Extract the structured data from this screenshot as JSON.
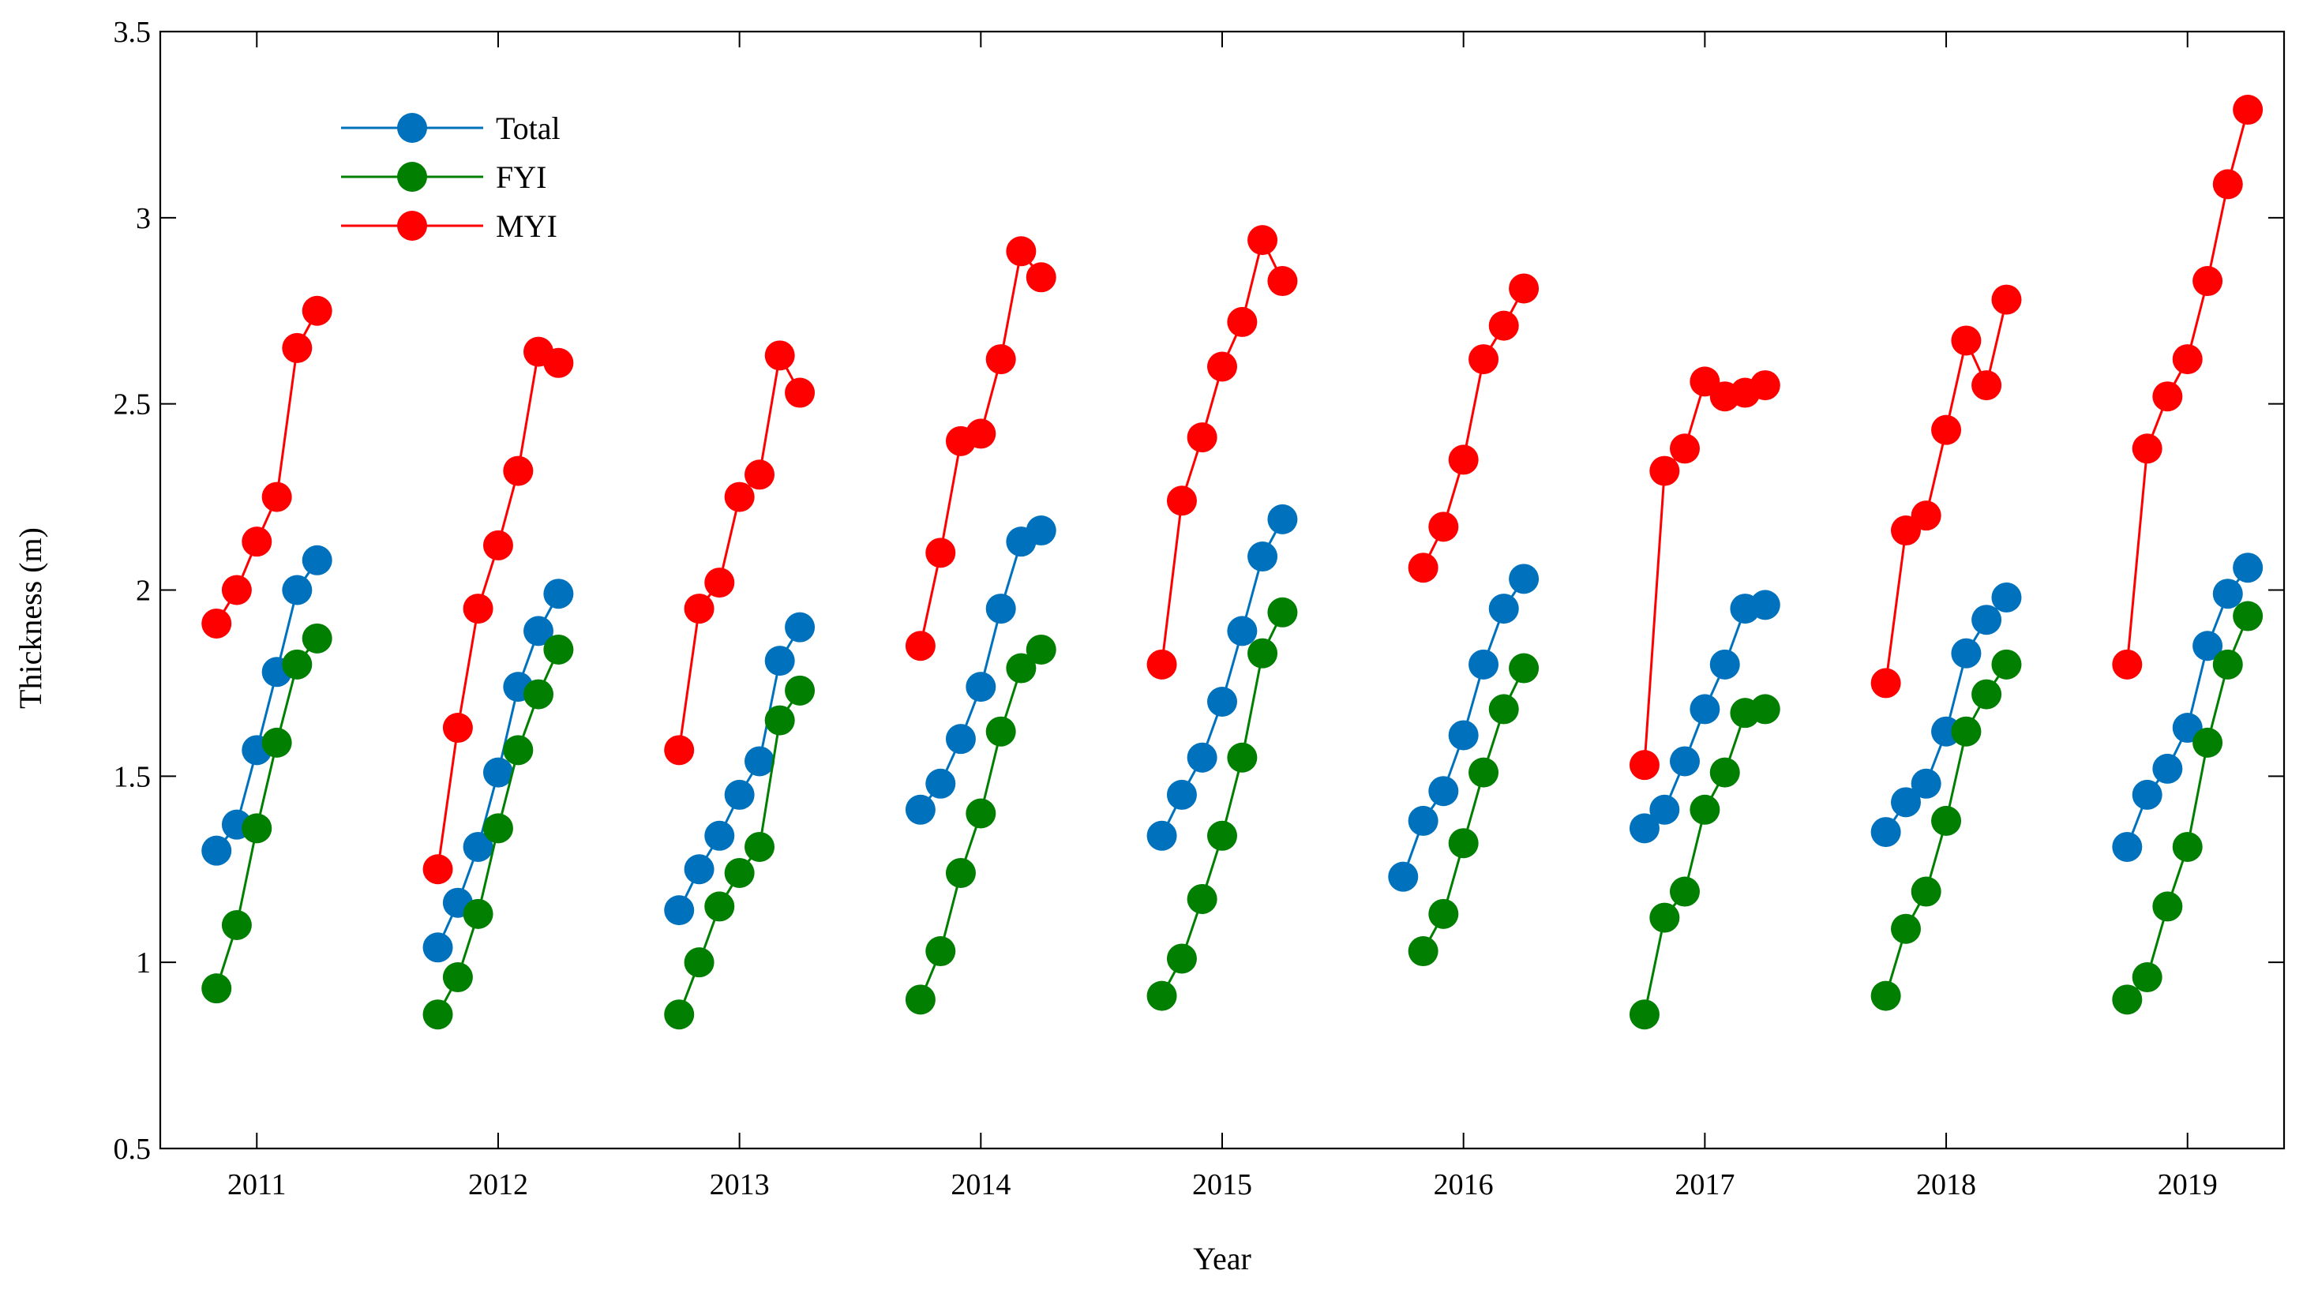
{
  "chart_data": {
    "type": "line",
    "title": "",
    "xlabel": "Year",
    "ylabel": "Thickness (m)",
    "xlim": [
      2010.6,
      2019.4
    ],
    "ylim": [
      0.5,
      3.5
    ],
    "xticks": [
      2011,
      2012,
      2013,
      2014,
      2015,
      2016,
      2017,
      2018,
      2019
    ],
    "xtick_labels": [
      "2011",
      "2012",
      "2013",
      "2014",
      "2015",
      "2016",
      "2017",
      "2018",
      "2019"
    ],
    "yticks": [
      0.5,
      1,
      1.5,
      2,
      2.5,
      3,
      3.5
    ],
    "ytick_labels": [
      "0.5",
      "1",
      "1.5",
      "2",
      "2.5",
      "3",
      "3.5"
    ],
    "grid": false,
    "legend_position": "top-left",
    "series": [
      {
        "name": "Total",
        "color": "#0072BD",
        "segments": [
          {
            "x": [
              2010.833,
              2010.917,
              2011.0,
              2011.083,
              2011.167,
              2011.25
            ],
            "y": [
              1.3,
              1.37,
              1.57,
              1.78,
              2.0,
              2.08
            ]
          },
          {
            "x": [
              2011.75,
              2011.833,
              2011.917,
              2012.0,
              2012.083,
              2012.167,
              2012.25
            ],
            "y": [
              1.04,
              1.16,
              1.31,
              1.51,
              1.74,
              1.89,
              1.99
            ]
          },
          {
            "x": [
              2012.75,
              2012.833,
              2012.917,
              2013.0,
              2013.083,
              2013.167,
              2013.25
            ],
            "y": [
              1.14,
              1.25,
              1.34,
              1.45,
              1.54,
              1.81,
              1.9
            ]
          },
          {
            "x": [
              2013.75,
              2013.833,
              2013.917,
              2014.0,
              2014.083,
              2014.167,
              2014.25
            ],
            "y": [
              1.41,
              1.48,
              1.6,
              1.74,
              1.95,
              2.13,
              2.16
            ]
          },
          {
            "x": [
              2014.75,
              2014.833,
              2014.917,
              2015.0,
              2015.083,
              2015.167,
              2015.25
            ],
            "y": [
              1.34,
              1.45,
              1.55,
              1.7,
              1.89,
              2.09,
              2.19
            ]
          },
          {
            "x": [
              2015.75,
              2015.833,
              2015.917,
              2016.0,
              2016.083,
              2016.167,
              2016.25
            ],
            "y": [
              1.23,
              1.38,
              1.46,
              1.61,
              1.8,
              1.95,
              2.03
            ]
          },
          {
            "x": [
              2016.75,
              2016.833,
              2016.917,
              2017.0,
              2017.083,
              2017.167,
              2017.25
            ],
            "y": [
              1.36,
              1.41,
              1.54,
              1.68,
              1.8,
              1.95,
              1.96
            ]
          },
          {
            "x": [
              2017.75,
              2017.833,
              2017.917,
              2018.0,
              2018.083,
              2018.167,
              2018.25
            ],
            "y": [
              1.35,
              1.43,
              1.48,
              1.62,
              1.83,
              1.92,
              1.98
            ]
          },
          {
            "x": [
              2018.75,
              2018.833,
              2018.917,
              2019.0,
              2019.083,
              2019.167,
              2019.25
            ],
            "y": [
              1.31,
              1.45,
              1.52,
              1.63,
              1.85,
              1.99,
              2.06
            ]
          }
        ]
      },
      {
        "name": "FYI",
        "color": "#007F00",
        "segments": [
          {
            "x": [
              2010.833,
              2010.917,
              2011.0,
              2011.083,
              2011.167,
              2011.25
            ],
            "y": [
              0.93,
              1.1,
              1.36,
              1.59,
              1.8,
              1.87
            ]
          },
          {
            "x": [
              2011.75,
              2011.833,
              2011.917,
              2012.0,
              2012.083,
              2012.167,
              2012.25
            ],
            "y": [
              0.86,
              0.96,
              1.13,
              1.36,
              1.57,
              1.72,
              1.84
            ]
          },
          {
            "x": [
              2012.75,
              2012.833,
              2012.917,
              2013.0,
              2013.083,
              2013.167,
              2013.25
            ],
            "y": [
              0.86,
              1.0,
              1.15,
              1.24,
              1.31,
              1.65,
              1.73
            ]
          },
          {
            "x": [
              2013.75,
              2013.833,
              2013.917,
              2014.0,
              2014.083,
              2014.167,
              2014.25
            ],
            "y": [
              0.9,
              1.03,
              1.24,
              1.4,
              1.62,
              1.79,
              1.84
            ]
          },
          {
            "x": [
              2014.75,
              2014.833,
              2014.917,
              2015.0,
              2015.083,
              2015.167,
              2015.25
            ],
            "y": [
              0.91,
              1.01,
              1.17,
              1.34,
              1.55,
              1.83,
              1.94
            ]
          },
          {
            "x": [
              2015.833,
              2015.917,
              2016.0,
              2016.083,
              2016.167,
              2016.25
            ],
            "y": [
              1.03,
              1.13,
              1.32,
              1.51,
              1.68,
              1.79
            ]
          },
          {
            "x": [
              2016.75,
              2016.833,
              2016.917,
              2017.0,
              2017.083,
              2017.167,
              2017.25
            ],
            "y": [
              0.86,
              1.12,
              1.19,
              1.41,
              1.51,
              1.67,
              1.68
            ]
          },
          {
            "x": [
              2017.75,
              2017.833,
              2017.917,
              2018.0,
              2018.083,
              2018.167,
              2018.25
            ],
            "y": [
              0.91,
              1.09,
              1.19,
              1.38,
              1.62,
              1.72,
              1.8
            ]
          },
          {
            "x": [
              2018.75,
              2018.833,
              2018.917,
              2019.0,
              2019.083,
              2019.167,
              2019.25
            ],
            "y": [
              0.9,
              0.96,
              1.15,
              1.31,
              1.59,
              1.8,
              1.93
            ]
          }
        ]
      },
      {
        "name": "MYI",
        "color": "#FF0000",
        "segments": [
          {
            "x": [
              2010.833,
              2010.917,
              2011.0,
              2011.083,
              2011.167,
              2011.25
            ],
            "y": [
              1.91,
              2.0,
              2.13,
              2.25,
              2.65,
              2.75
            ]
          },
          {
            "x": [
              2011.75,
              2011.833,
              2011.917,
              2012.0,
              2012.083,
              2012.167,
              2012.25
            ],
            "y": [
              1.25,
              1.63,
              1.95,
              2.12,
              2.32,
              2.64,
              2.61
            ]
          },
          {
            "x": [
              2012.75,
              2012.833,
              2012.917,
              2013.0,
              2013.083,
              2013.167,
              2013.25
            ],
            "y": [
              1.57,
              1.95,
              2.02,
              2.25,
              2.31,
              2.63,
              2.53
            ]
          },
          {
            "x": [
              2013.75,
              2013.833,
              2013.917,
              2014.0,
              2014.083,
              2014.167,
              2014.25
            ],
            "y": [
              1.85,
              2.1,
              2.4,
              2.42,
              2.62,
              2.91,
              2.84
            ]
          },
          {
            "x": [
              2014.75,
              2014.833,
              2014.917,
              2015.0,
              2015.083,
              2015.167,
              2015.25
            ],
            "y": [
              1.8,
              2.24,
              2.41,
              2.6,
              2.72,
              2.94,
              2.83
            ]
          },
          {
            "x": [
              2015.833,
              2015.917,
              2016.0,
              2016.083,
              2016.167,
              2016.25
            ],
            "y": [
              2.06,
              2.17,
              2.35,
              2.62,
              2.71,
              2.81
            ]
          },
          {
            "x": [
              2016.75,
              2016.833,
              2016.917,
              2017.0,
              2017.083,
              2017.167,
              2017.25
            ],
            "y": [
              1.53,
              2.32,
              2.38,
              2.56,
              2.52,
              2.53,
              2.55
            ]
          },
          {
            "x": [
              2017.75,
              2017.833,
              2017.917,
              2018.0,
              2018.083,
              2018.167,
              2018.25
            ],
            "y": [
              1.75,
              2.16,
              2.2,
              2.43,
              2.67,
              2.55,
              2.78
            ]
          },
          {
            "x": [
              2018.75,
              2018.833,
              2018.917,
              2019.0,
              2019.083,
              2019.167,
              2019.25
            ],
            "y": [
              1.8,
              2.38,
              2.52,
              2.62,
              2.83,
              3.09,
              3.29
            ]
          }
        ]
      }
    ]
  }
}
